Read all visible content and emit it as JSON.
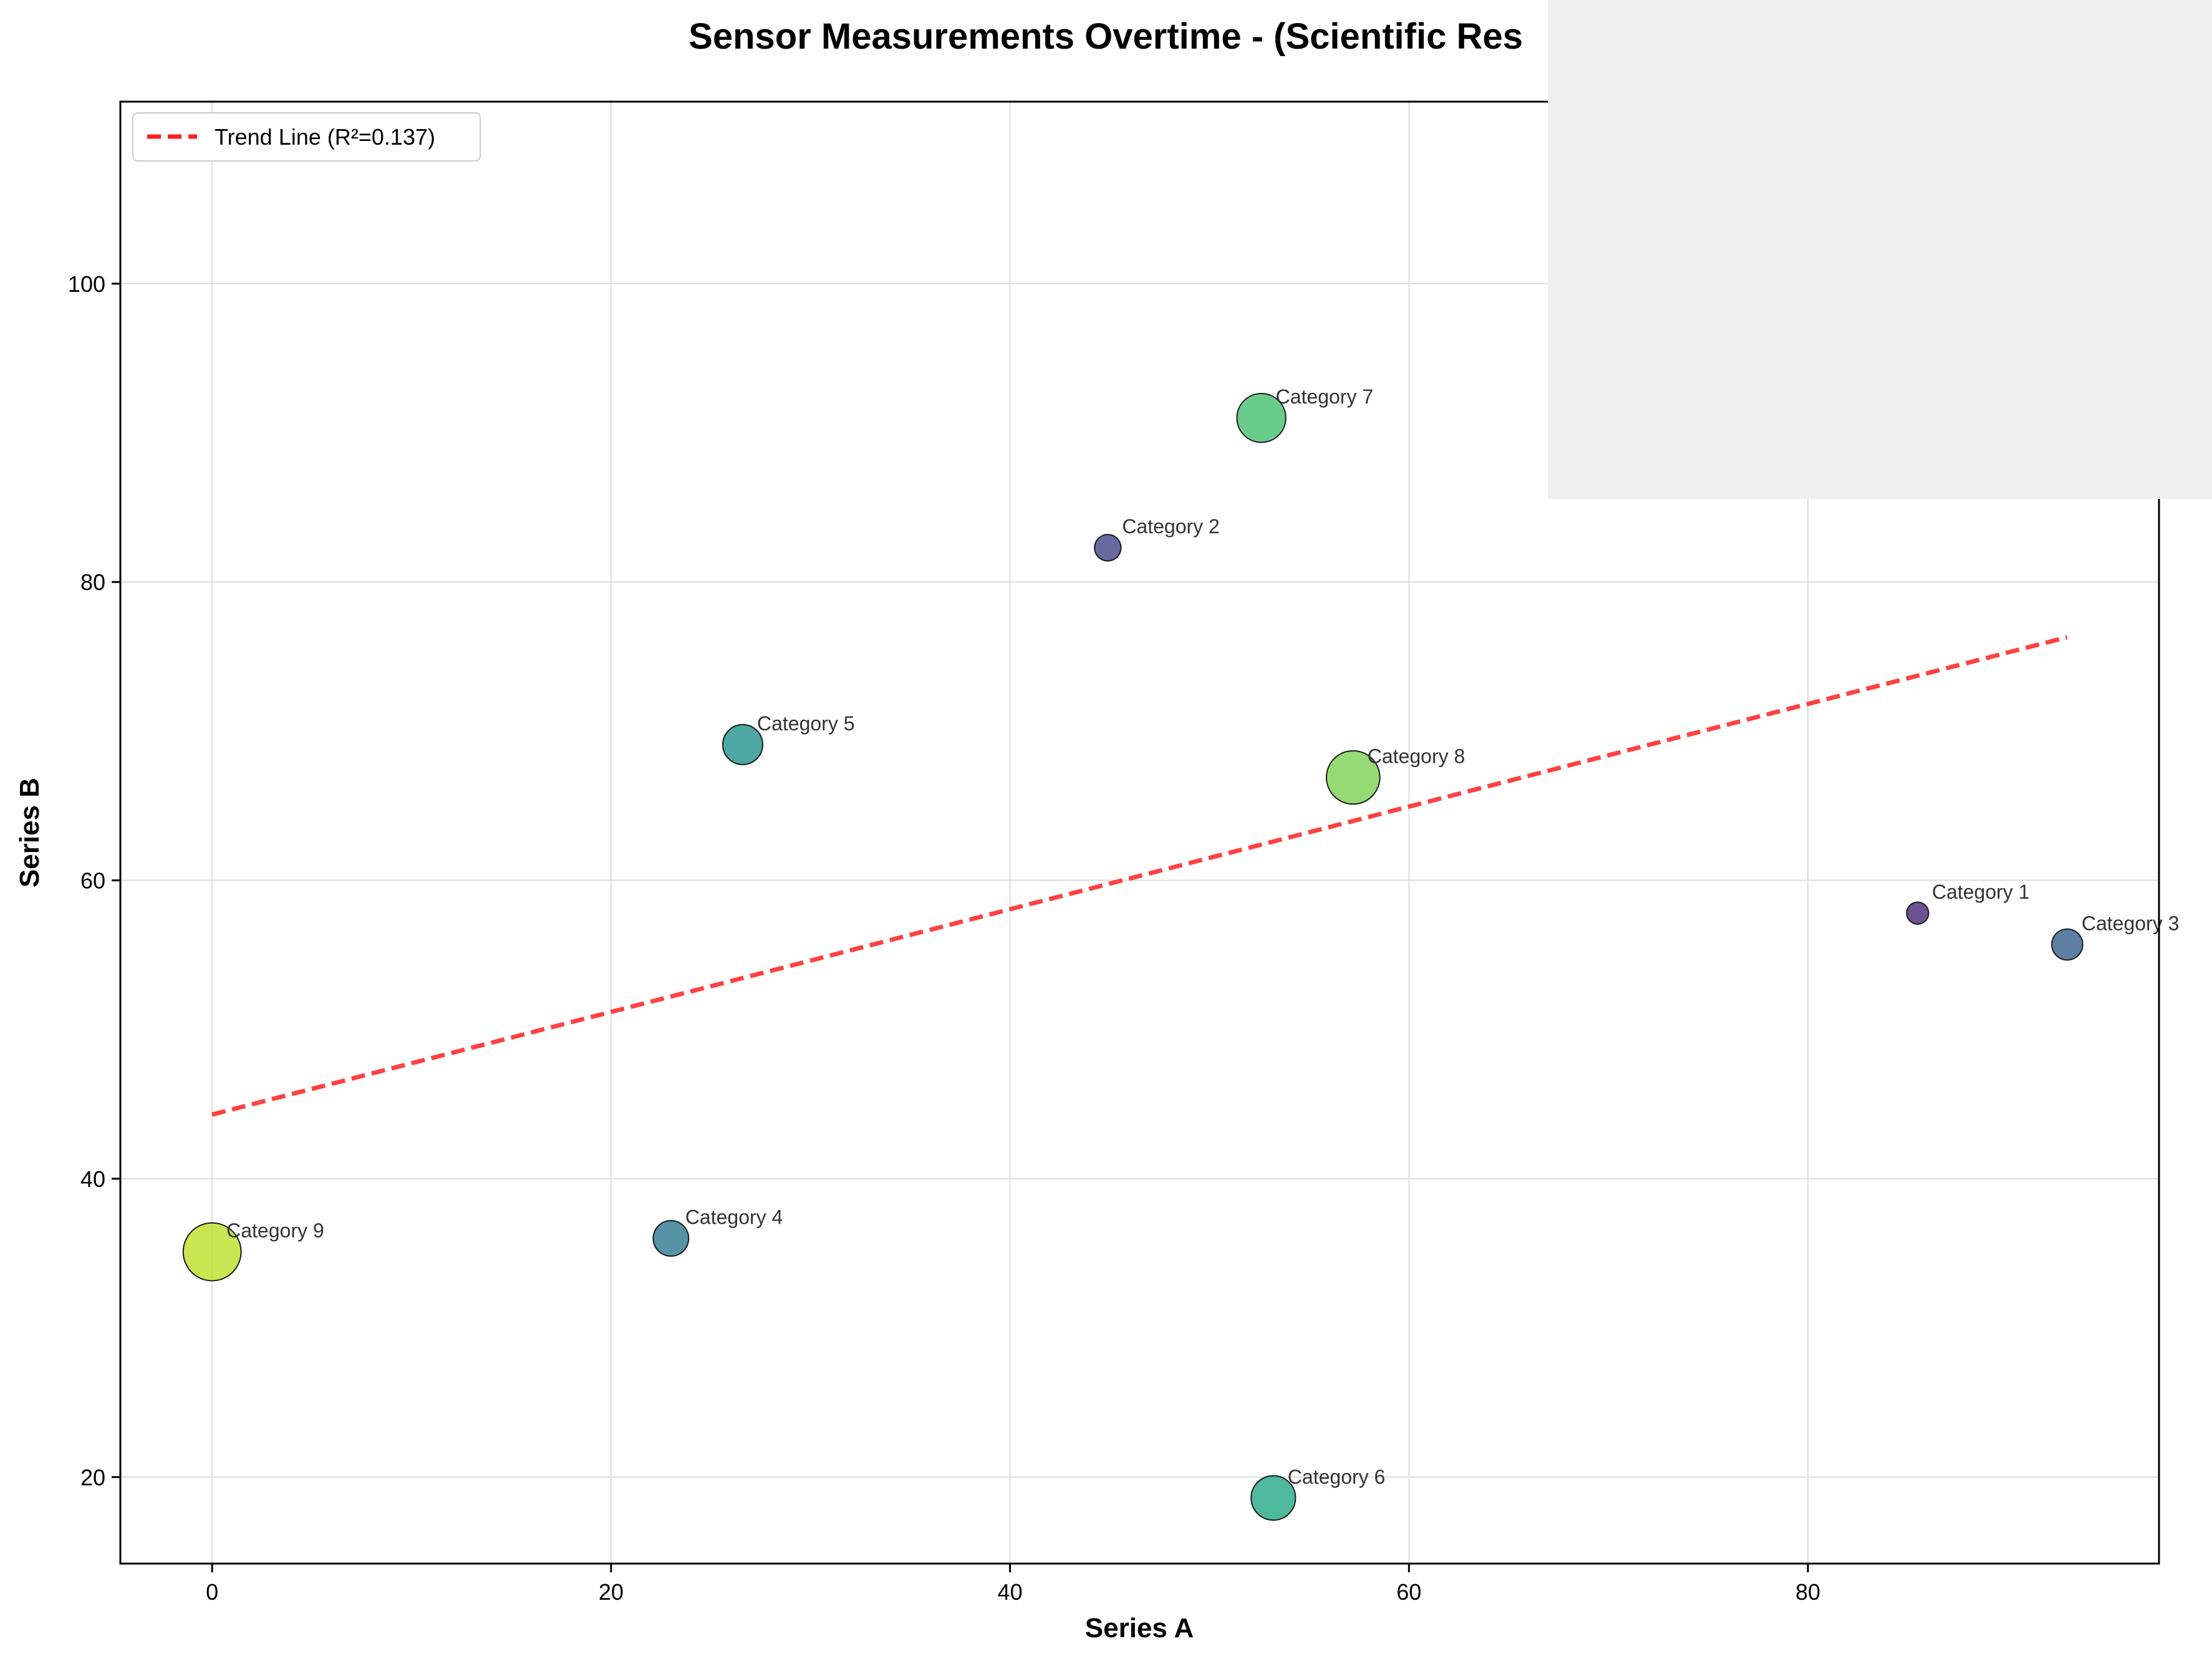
{
  "chart_data": {
    "type": "scatter",
    "title": "Sensor Measurements Overtime - (Scientific Res",
    "xlabel": "Series A",
    "ylabel": "Series B",
    "xlim": [
      -4.6,
      97.6
    ],
    "ylim": [
      14.2,
      112.2
    ],
    "xticks": [
      0,
      20,
      40,
      60,
      80
    ],
    "yticks": [
      20,
      40,
      60,
      80,
      100
    ],
    "grid": true,
    "legend_position": "top-left",
    "points": [
      {
        "label": "Category 1",
        "x": 85.5,
        "y": 57.8,
        "size": 1,
        "color": "#482475"
      },
      {
        "label": "Category 2",
        "x": 44.9,
        "y": 82.3,
        "size": 2,
        "color": "#414487"
      },
      {
        "label": "Category 3",
        "x": 93.0,
        "y": 55.7,
        "size": 3,
        "color": "#355f8d"
      },
      {
        "label": "Category 4",
        "x": 23.0,
        "y": 36.0,
        "size": 4,
        "color": "#2a788e"
      },
      {
        "label": "Category 5",
        "x": 26.6,
        "y": 69.1,
        "size": 5,
        "color": "#21918c"
      },
      {
        "label": "Category 6",
        "x": 53.2,
        "y": 18.6,
        "size": 6,
        "color": "#22a884"
      },
      {
        "label": "Category 7",
        "x": 52.6,
        "y": 91.0,
        "size": 7,
        "color": "#44bf70"
      },
      {
        "label": "Category 8",
        "x": 57.2,
        "y": 66.9,
        "size": 8,
        "color": "#7ad151"
      },
      {
        "label": "Category 9",
        "x": 0.0,
        "y": 35.1,
        "size": 9,
        "color": "#bddf26"
      }
    ],
    "trend_line": {
      "label": "Trend Line (R²=0.137)",
      "x_start": 0.0,
      "y_start": 44.3,
      "x_end": 93.0,
      "y_end": 76.3,
      "color": "#ff2020",
      "style": "dashed"
    }
  },
  "overlay_panel": {
    "color": "#efefef"
  }
}
